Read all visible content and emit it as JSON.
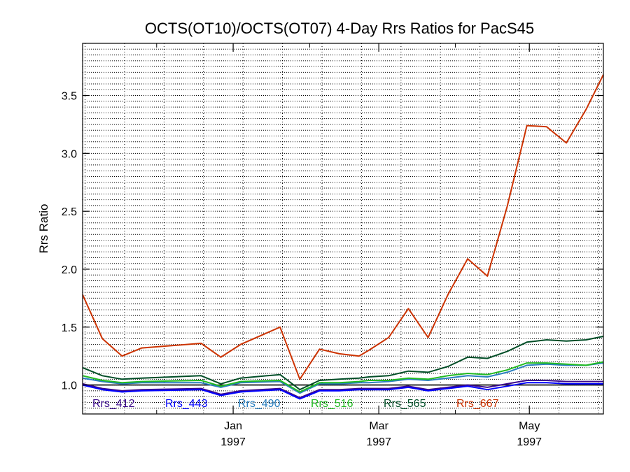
{
  "chart_data": {
    "type": "line",
    "title": "OCTS(OT10)/OCTS(OT07) 4-Day Rrs Ratios for PacS45",
    "xlabel": "",
    "ylabel": "Rrs Ratio",
    "xlim": [
      "1996-11-01",
      "1997-05-31"
    ],
    "ylim": [
      0.75,
      3.95
    ],
    "x_ticks": [
      {
        "date": "1997-01-01",
        "month": "Jan",
        "year": "1997"
      },
      {
        "date": "1997-03-01",
        "month": "Mar",
        "year": "1997"
      },
      {
        "date": "1997-05-01",
        "month": "May",
        "year": "1997"
      }
    ],
    "y_ticks": [
      {
        "value": 1.0,
        "label": "1.0"
      },
      {
        "value": 1.5,
        "label": "1.5"
      },
      {
        "value": 2.0,
        "label": "2.0"
      },
      {
        "value": 2.5,
        "label": "2.5"
      },
      {
        "value": 3.0,
        "label": "3.0"
      },
      {
        "value": 3.5,
        "label": "3.5"
      }
    ],
    "grid": true,
    "reference_line": 1.0,
    "legend_placement": "bottom-inside",
    "x": [
      "1996-11-01",
      "1996-11-09",
      "1996-11-17",
      "1996-11-25",
      "1996-12-19",
      "1996-12-27",
      "1997-01-04",
      "1997-01-20",
      "1997-01-28",
      "1997-02-05",
      "1997-02-13",
      "1997-02-21",
      "1997-02-25",
      "1997-03-05",
      "1997-03-13",
      "1997-03-21",
      "1997-03-29",
      "1997-04-06",
      "1997-04-14",
      "1997-04-22",
      "1997-04-30",
      "1997-05-08",
      "1997-05-16",
      "1997-05-24",
      "1997-05-31"
    ],
    "series": [
      {
        "name": "Rrs_412",
        "color": "#3c0a8c",
        "values": [
          1.01,
          0.97,
          0.95,
          0.96,
          0.97,
          0.92,
          0.95,
          0.97,
          0.89,
          0.96,
          0.96,
          0.97,
          0.97,
          0.97,
          0.99,
          0.96,
          0.98,
          1.0,
          0.98,
          1.01,
          1.04,
          1.04,
          1.03,
          1.03,
          1.03
        ]
      },
      {
        "name": "Rrs_443",
        "color": "#0000ff",
        "values": [
          1.0,
          0.96,
          0.94,
          0.95,
          0.96,
          0.91,
          0.94,
          0.96,
          0.88,
          0.95,
          0.95,
          0.96,
          0.96,
          0.96,
          0.98,
          0.95,
          0.97,
          0.99,
          0.96,
          0.99,
          1.02,
          1.02,
          1.01,
          1.01,
          1.01
        ]
      },
      {
        "name": "Rrs_490",
        "color": "#2a7fbf",
        "values": [
          1.06,
          1.03,
          1.01,
          1.02,
          1.02,
          0.98,
          1.02,
          1.03,
          0.93,
          1.01,
          1.01,
          1.02,
          1.02,
          1.03,
          1.05,
          1.04,
          1.06,
          1.08,
          1.07,
          1.11,
          1.17,
          1.18,
          1.17,
          1.17,
          1.19
        ]
      },
      {
        "name": "Rrs_516",
        "color": "#22bb22",
        "values": [
          1.08,
          1.04,
          1.02,
          1.03,
          1.04,
          0.99,
          1.03,
          1.04,
          0.94,
          1.02,
          1.02,
          1.03,
          1.04,
          1.04,
          1.06,
          1.05,
          1.08,
          1.1,
          1.09,
          1.13,
          1.19,
          1.19,
          1.18,
          1.17,
          1.2
        ]
      },
      {
        "name": "Rrs_565",
        "color": "#004d26",
        "values": [
          1.15,
          1.08,
          1.05,
          1.06,
          1.08,
          1.01,
          1.06,
          1.09,
          0.96,
          1.04,
          1.05,
          1.06,
          1.07,
          1.08,
          1.12,
          1.11,
          1.16,
          1.24,
          1.23,
          1.29,
          1.37,
          1.39,
          1.38,
          1.39,
          1.42
        ]
      },
      {
        "name": "Rrs_667",
        "color": "#cc3300",
        "values": [
          1.78,
          1.4,
          1.25,
          1.32,
          1.36,
          1.24,
          1.35,
          1.5,
          1.05,
          1.31,
          1.27,
          1.25,
          1.3,
          1.41,
          1.66,
          1.41,
          1.78,
          2.09,
          1.94,
          2.54,
          3.24,
          3.23,
          3.09,
          3.38,
          3.68
        ]
      }
    ]
  }
}
